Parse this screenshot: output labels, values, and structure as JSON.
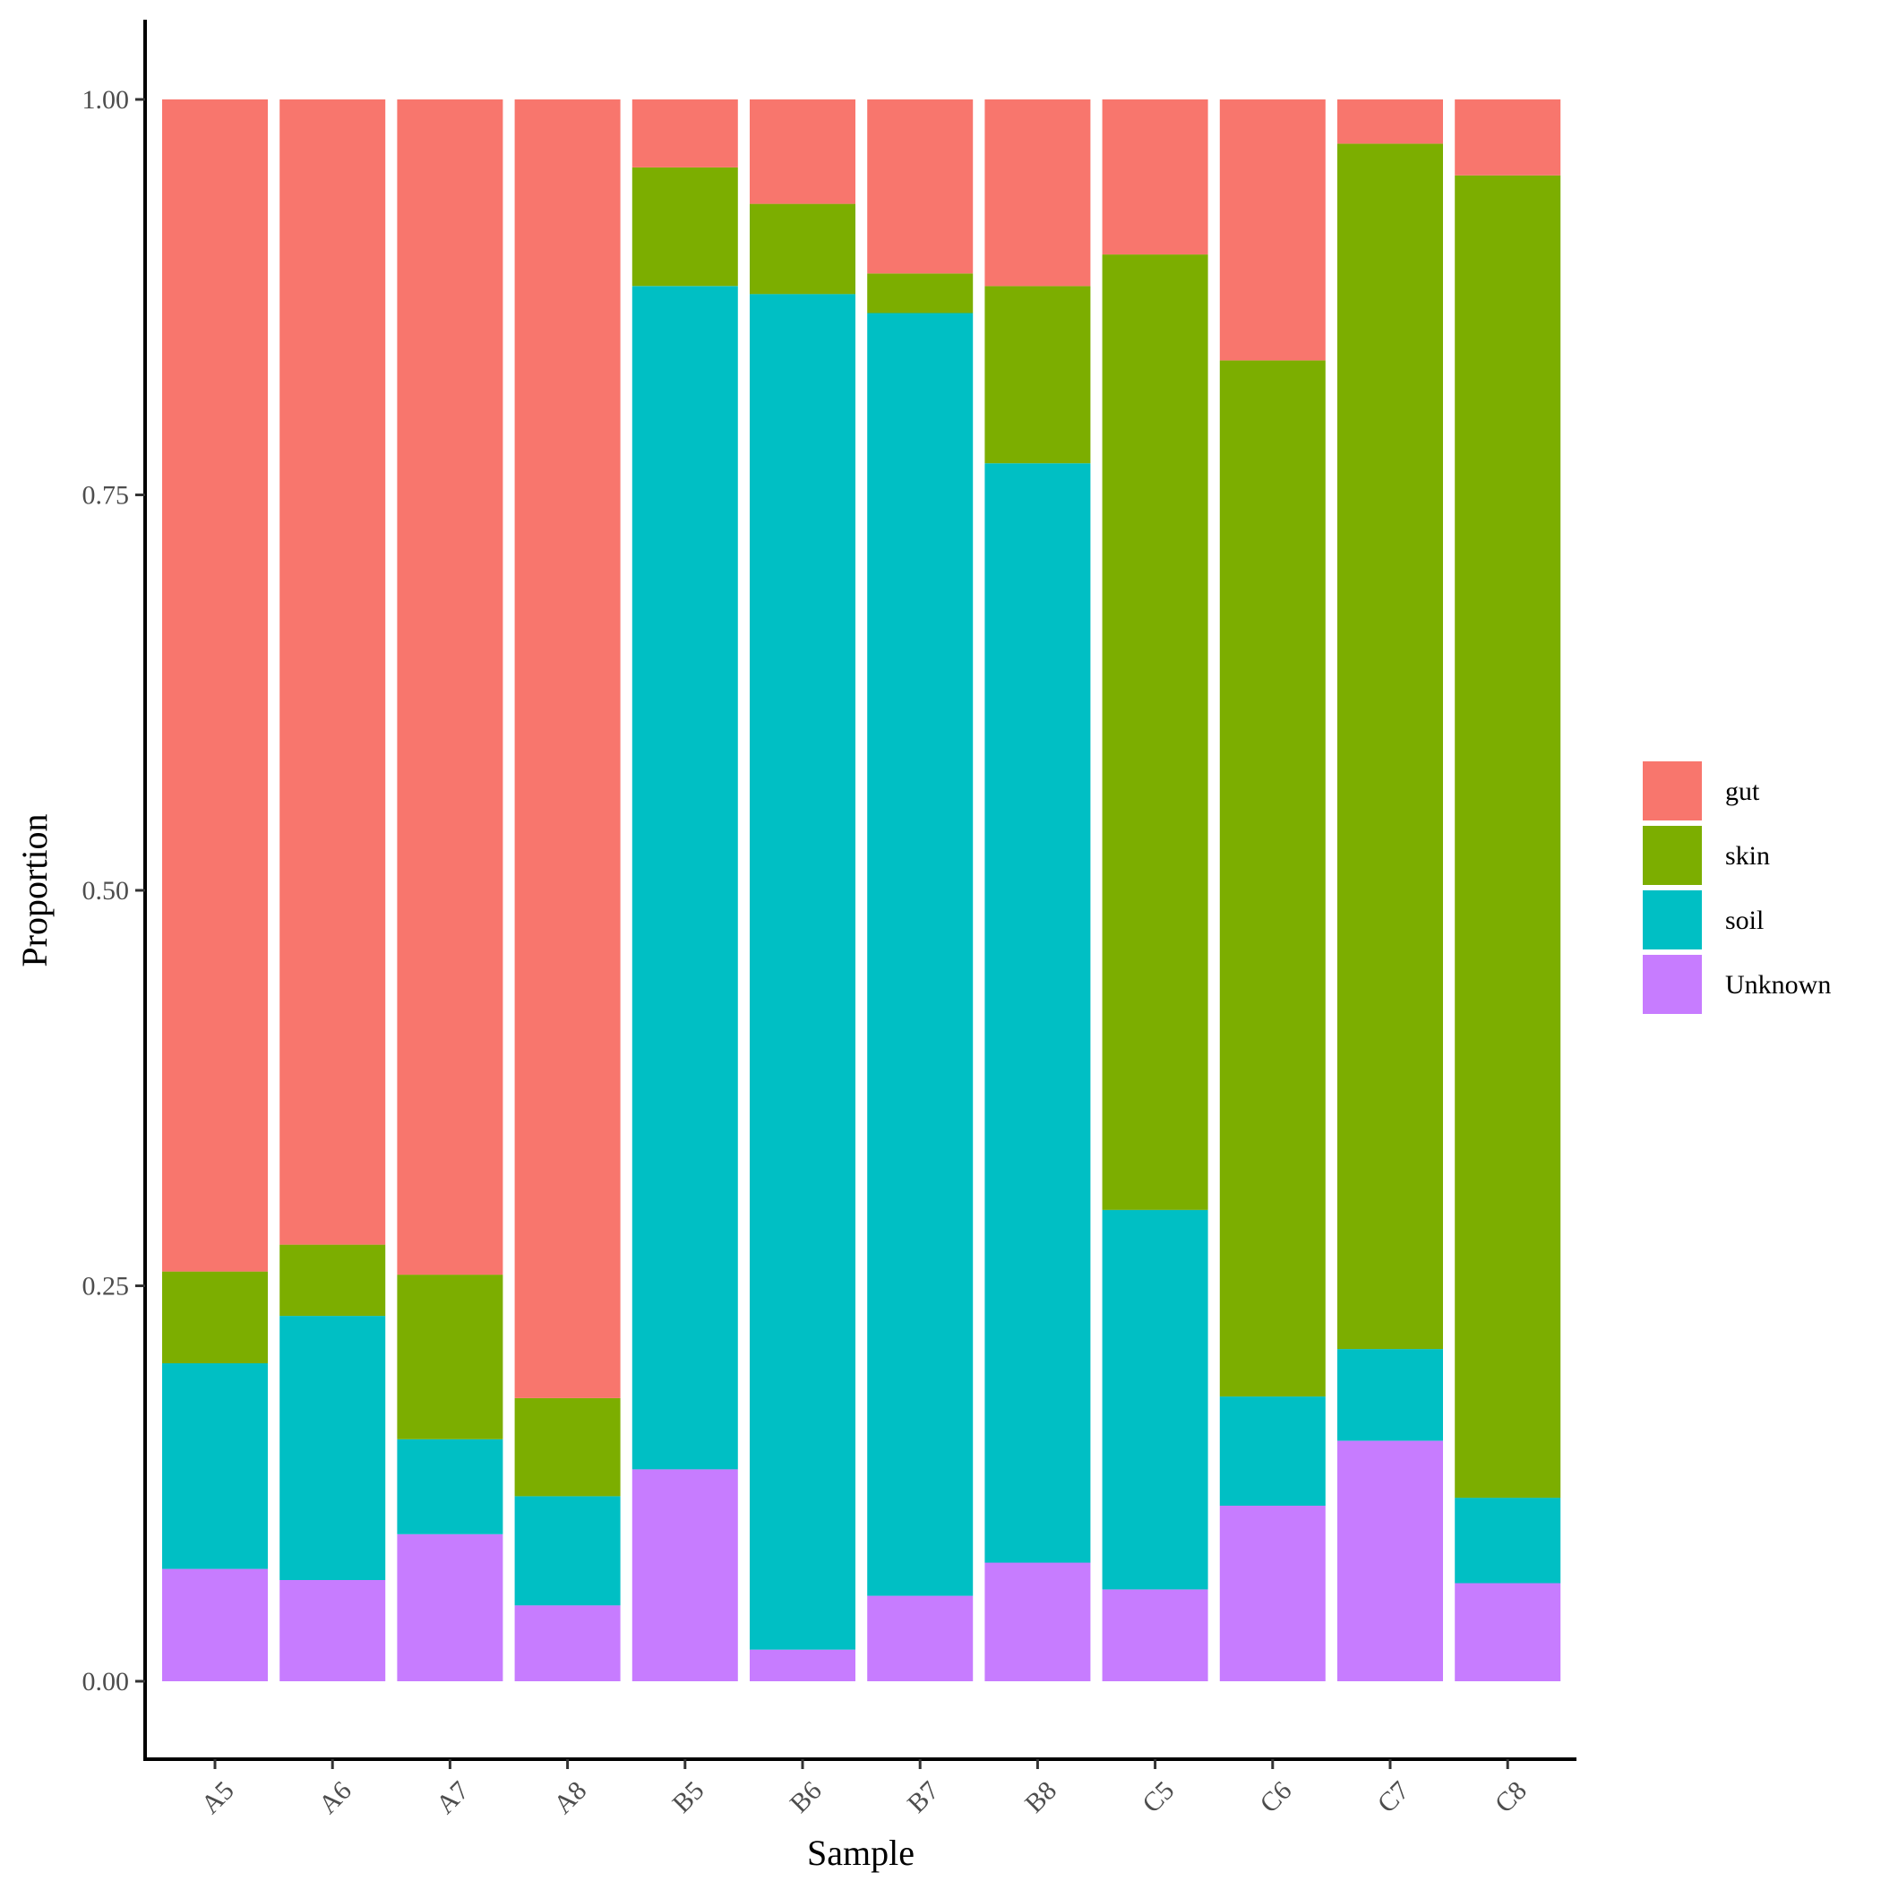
{
  "chart_data": {
    "type": "bar",
    "stacked": true,
    "xlabel": "Sample",
    "ylabel": "Proportion",
    "categories": [
      "A5",
      "A6",
      "A7",
      "A8",
      "B5",
      "B6",
      "B7",
      "B8",
      "C5",
      "C6",
      "C7",
      "C8"
    ],
    "series": [
      {
        "name": "Unknown",
        "color": "#C77CFF",
        "values": [
          0.071,
          0.064,
          0.093,
          0.048,
          0.134,
          0.02,
          0.054,
          0.075,
          0.058,
          0.111,
          0.152,
          0.062
        ]
      },
      {
        "name": "soil",
        "color": "#00BFC4",
        "values": [
          0.13,
          0.167,
          0.06,
          0.069,
          0.748,
          0.857,
          0.811,
          0.695,
          0.24,
          0.069,
          0.058,
          0.054
        ]
      },
      {
        "name": "skin",
        "color": "#7CAE00",
        "values": [
          0.058,
          0.045,
          0.104,
          0.062,
          0.075,
          0.057,
          0.025,
          0.112,
          0.604,
          0.655,
          0.762,
          0.836
        ]
      },
      {
        "name": "gut",
        "color": "#F8766D",
        "values": [
          0.741,
          0.724,
          0.743,
          0.821,
          0.043,
          0.066,
          0.11,
          0.118,
          0.098,
          0.165,
          0.028,
          0.048
        ]
      }
    ],
    "legend_order": [
      "gut",
      "skin",
      "soil",
      "Unknown"
    ],
    "ylim": [
      -0.05,
      1.05
    ],
    "yticks": [
      0.0,
      0.25,
      0.5,
      0.75,
      1.0
    ],
    "ytick_labels": [
      "0.00",
      "0.25",
      "0.50",
      "0.75",
      "1.00"
    ],
    "grid": false,
    "legend_position": "right"
  }
}
